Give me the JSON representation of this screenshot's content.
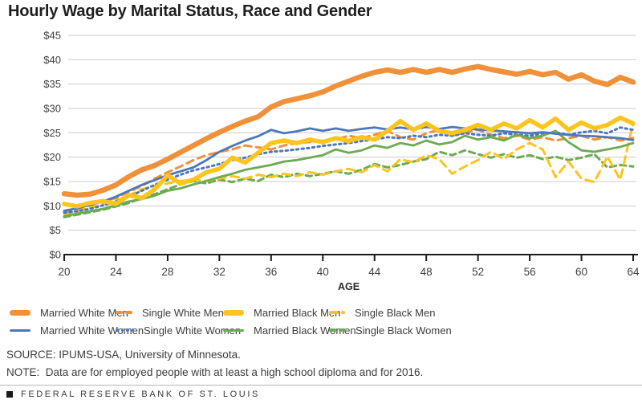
{
  "title": "Hourly Wage by Marital Status, Race and Gender",
  "source_line": "SOURCE: IPUMS-USA, University of Minnesota.",
  "note_line": "NOTE:  Data are for employed people with at least a high school diploma and for 2016.",
  "footer": "FEDERAL RESERVE BANK OF ST. LOUIS",
  "colors": {
    "orange": "#F0913A",
    "blue": "#4D77BD",
    "yellow": "#FCC41D",
    "green": "#6BAB51",
    "grid": "#CCCCCC",
    "axis": "#1A1A1A",
    "tick_label": "#404040"
  },
  "legend": {
    "items": [
      {
        "label": "Married White Men",
        "color": "#F0913A",
        "style": "thick"
      },
      {
        "label": "Single White Men",
        "color": "#F0913A",
        "style": "dashes"
      },
      {
        "label": "Married Black Men",
        "color": "#FCC41D",
        "style": "thick"
      },
      {
        "label": "Single Black Men",
        "color": "#FCC41D",
        "style": "dash-long-short"
      },
      {
        "label": "Married White Women",
        "color": "#4D77BD",
        "style": "line"
      },
      {
        "label": "Single White Women",
        "color": "#4D77BD",
        "style": "dots"
      },
      {
        "label": "Married Black Women",
        "color": "#6BAB51",
        "style": "line"
      },
      {
        "label": "Single Black Women",
        "color": "#6BAB51",
        "style": "dashes"
      }
    ]
  },
  "chart_data": {
    "type": "line",
    "title": "Hourly Wage by Marital Status, Race and Gender",
    "xlabel": "AGE",
    "ylabel": "",
    "xlim": [
      20,
      64
    ],
    "ylim": [
      0,
      45
    ],
    "x_start": 20,
    "x_step": 1,
    "x_tick_labels": [
      "20",
      "24",
      "28",
      "32",
      "36",
      "40",
      "44",
      "48",
      "52",
      "56",
      "60",
      "64"
    ],
    "x_tick_values": [
      20,
      24,
      28,
      32,
      36,
      40,
      44,
      48,
      52,
      56,
      60,
      64
    ],
    "y_tick_labels": [
      "$0",
      "$5",
      "$10",
      "$15",
      "$20",
      "$25",
      "$30",
      "$35",
      "$40",
      "$45"
    ],
    "y_tick_values": [
      0,
      5,
      10,
      15,
      20,
      25,
      30,
      35,
      40,
      45
    ],
    "grid": true,
    "legend_position": "bottom",
    "series": [
      {
        "name": "Single Black Women",
        "color": "#6BAB51",
        "width": 3,
        "dash": "7.5 5",
        "values": [
          7.7,
          8.2,
          8.7,
          9.2,
          9.9,
          10.6,
          11.6,
          12.4,
          13.4,
          14.4,
          15.1,
          14.6,
          15.4,
          14.9,
          15.6,
          15.1,
          16.4,
          15.9,
          16.6,
          16.1,
          16.6,
          17.1,
          16.6,
          17.4,
          18.6,
          17.9,
          18.4,
          19.1,
          19.6,
          21.1,
          20.4,
          21.4,
          20.6,
          19.9,
          20.6,
          19.9,
          20.4,
          19.6,
          20.1,
          19.4,
          19.9,
          20.6,
          17.9,
          18.4,
          18.1
        ]
      },
      {
        "name": "Single Black Men",
        "color": "#FCC41D",
        "width": 3,
        "dash": "10 6.5",
        "values": [
          8.4,
          8.9,
          9.6,
          10.4,
          11.1,
          12.1,
          13.4,
          14.1,
          14.6,
          15.1,
          15.4,
          15.1,
          15.6,
          16.1,
          15.6,
          16.4,
          15.9,
          16.6,
          16.1,
          16.9,
          16.4,
          17.1,
          17.6,
          16.9,
          18.4,
          17.1,
          19.6,
          18.9,
          20.4,
          19.6,
          16.6,
          18.1,
          19.4,
          21.1,
          19.6,
          21.6,
          22.9,
          21.6,
          15.9,
          19.1,
          15.6,
          14.9,
          20.1,
          15.4,
          27.1
        ]
      },
      {
        "name": "Single White Men",
        "color": "#F0913A",
        "width": 3,
        "dash": "9 6",
        "values": [
          8.9,
          9.4,
          10.1,
          10.9,
          11.6,
          12.9,
          14.1,
          15.6,
          16.9,
          18.1,
          19.4,
          20.4,
          21.1,
          21.6,
          22.4,
          22.0,
          21.6,
          22.4,
          22.9,
          23.1,
          23.4,
          23.6,
          24.4,
          23.9,
          24.6,
          25.4,
          24.1,
          23.6,
          24.9,
          25.6,
          24.4,
          25.1,
          25.6,
          24.6,
          23.9,
          24.4,
          23.6,
          24.1,
          23.4,
          23.9,
          24.4,
          23.6,
          24.1,
          23.4,
          23.9
        ]
      },
      {
        "name": "Single White Women",
        "color": "#4D77BD",
        "width": 3,
        "dash": "2.5 4.2",
        "values": [
          8.6,
          8.9,
          9.4,
          10.1,
          10.9,
          11.9,
          13.1,
          14.3,
          15.4,
          16.4,
          17.3,
          17.9,
          18.6,
          19.4,
          19.9,
          20.6,
          21.1,
          21.3,
          21.6,
          21.9,
          22.3,
          22.6,
          22.9,
          23.3,
          23.6,
          24.1,
          23.9,
          24.4,
          24.1,
          24.6,
          24.4,
          24.9,
          24.6,
          24.4,
          24.9,
          24.6,
          24.4,
          24.9,
          25.1,
          24.6,
          25.1,
          25.4,
          24.9,
          26.1,
          25.6
        ]
      },
      {
        "name": "Married Black Women",
        "color": "#6BAB51",
        "width": 2.8,
        "dash": "",
        "values": [
          7.9,
          8.4,
          8.9,
          9.4,
          10.1,
          10.9,
          11.4,
          12.1,
          13.1,
          13.6,
          14.4,
          15.1,
          15.9,
          16.6,
          17.4,
          17.9,
          18.4,
          19.1,
          19.4,
          19.9,
          20.4,
          21.6,
          20.9,
          21.4,
          22.4,
          21.9,
          22.9,
          22.4,
          23.4,
          22.6,
          23.1,
          24.4,
          23.6,
          24.1,
          23.4,
          24.6,
          23.9,
          24.4,
          25.4,
          23.1,
          21.4,
          21.1,
          21.6,
          22.1,
          22.9
        ]
      },
      {
        "name": "Married White Women",
        "color": "#4D77BD",
        "width": 2.8,
        "dash": "",
        "values": [
          9.0,
          9.5,
          10.2,
          10.9,
          11.9,
          13.1,
          14.3,
          15.3,
          16.3,
          17.1,
          17.9,
          19.4,
          21.1,
          22.3,
          23.4,
          24.3,
          25.6,
          24.9,
          25.3,
          25.9,
          25.4,
          25.9,
          25.4,
          25.8,
          26.1,
          25.7,
          26.1,
          25.7,
          26.2,
          25.8,
          26.2,
          25.9,
          25.7,
          25.5,
          25.3,
          25.1,
          24.9,
          25.1,
          24.8,
          24.6,
          24.4,
          24.3,
          24.1,
          23.9,
          23.5
        ]
      },
      {
        "name": "Married Black Men",
        "color": "#FCC41D",
        "width": 5.5,
        "dash": "",
        "values": [
          10.4,
          9.9,
          10.6,
          11.0,
          10.4,
          12.2,
          11.6,
          13.4,
          16.3,
          14.6,
          15.4,
          16.9,
          17.6,
          19.9,
          18.9,
          20.9,
          22.9,
          23.4,
          22.9,
          23.6,
          23.1,
          23.9,
          23.3,
          24.1,
          23.6,
          25.4,
          27.4,
          25.6,
          26.9,
          25.4,
          24.9,
          25.6,
          26.6,
          25.6,
          26.9,
          25.9,
          27.6,
          26.1,
          27.9,
          25.6,
          27.1,
          25.9,
          26.6,
          28.1,
          26.9
        ]
      },
      {
        "name": "Married White Men",
        "color": "#F0913A",
        "width": 6.5,
        "dash": "",
        "values": [
          12.5,
          12.2,
          12.4,
          13.2,
          14.3,
          16.0,
          17.4,
          18.3,
          19.6,
          21.0,
          22.4,
          23.8,
          25.1,
          26.3,
          27.4,
          28.3,
          30.3,
          31.4,
          32.0,
          32.6,
          33.4,
          34.6,
          35.6,
          36.6,
          37.4,
          37.9,
          37.4,
          38.0,
          37.4,
          38.0,
          37.4,
          38.1,
          38.6,
          38.0,
          37.5,
          37.0,
          37.6,
          36.9,
          37.4,
          36.0,
          36.9,
          35.6,
          34.9,
          36.4,
          35.4
        ]
      }
    ]
  }
}
